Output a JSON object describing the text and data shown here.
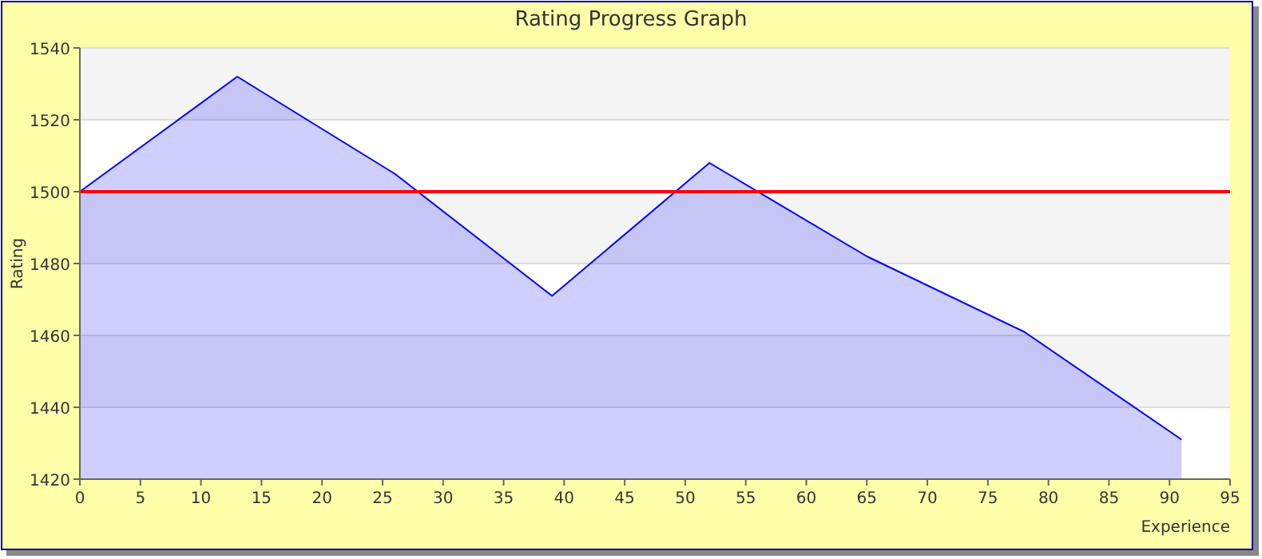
{
  "chart_data": {
    "type": "area",
    "title": "Rating Progress Graph",
    "xlabel": "Experience",
    "ylabel": "Rating",
    "x": [
      0,
      13,
      26,
      39,
      52,
      65,
      78,
      91
    ],
    "series": [
      {
        "color": "#0000ff",
        "values": [
          1500,
          1532,
          1505,
          1471,
          1508,
          1482,
          1461,
          1431
        ]
      }
    ],
    "xlim": [
      0,
      95
    ],
    "xticks": [
      0,
      5,
      10,
      15,
      20,
      25,
      30,
      35,
      40,
      45,
      50,
      55,
      60,
      65,
      70,
      75,
      80,
      85,
      90,
      95
    ],
    "ylim": [
      1420,
      1540
    ],
    "yticks": [
      1420,
      1440,
      1460,
      1480,
      1500,
      1520,
      1540
    ],
    "grid": "y",
    "ref_lines": [
      {
        "axis": "y",
        "value": 1500,
        "color": "#ff0000"
      }
    ]
  }
}
